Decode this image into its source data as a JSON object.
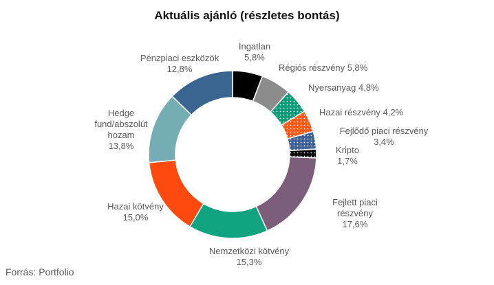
{
  "chart_data": {
    "type": "pie",
    "variant": "donut",
    "title": "Aktuális ajánló (részletes bontás)",
    "slices": [
      {
        "name": "Ingatlan",
        "label_lines": [
          "Ingatlan",
          "5,8%"
        ],
        "value": 5.8,
        "color": "#000000",
        "pattern": "solid"
      },
      {
        "name": "Régiós részvény",
        "label_lines": [
          "Régiós részvény 5,8%"
        ],
        "value": 5.8,
        "color": "#8c8c8c",
        "pattern": "solid"
      },
      {
        "name": "Nyersanyag",
        "label_lines": [
          "Nyersanyag 4,8%"
        ],
        "value": 4.8,
        "color": "#0a9c78",
        "pattern": "dots"
      },
      {
        "name": "Hazai részvény",
        "label_lines": [
          "Hazai részvény 4,2%"
        ],
        "value": 4.2,
        "color": "#ff5a14",
        "pattern": "dots"
      },
      {
        "name": "Fejlődő piaci részvény",
        "label_lines": [
          "Fejlődő piaci részvény",
          "3,4%"
        ],
        "value": 3.4,
        "color": "#3d6199",
        "pattern": "dots"
      },
      {
        "name": "Kripto",
        "label_lines": [
          "Kripto",
          "1,7%"
        ],
        "value": 1.7,
        "color": "#000000",
        "pattern": "dots"
      },
      {
        "name": "Fejlett piaci részvény",
        "label_lines": [
          "Fejlett piaci",
          "részvény",
          "17,6%"
        ],
        "value": 17.6,
        "color": "#7d5e7a",
        "pattern": "solid"
      },
      {
        "name": "Nemzetközi kötvény",
        "label_lines": [
          "Nemzetközi kötvény",
          "15,3%"
        ],
        "value": 15.3,
        "color": "#0fa37f",
        "pattern": "solid"
      },
      {
        "name": "Hazai kötvény",
        "label_lines": [
          "Hazai kötvény",
          "15,0%"
        ],
        "value": 15.0,
        "color": "#ff4a0f",
        "pattern": "solid"
      },
      {
        "name": "Hedge fund/abszolút hozam",
        "label_lines": [
          "Hedge",
          "fund/abszolút",
          "hozam",
          "13,8%"
        ],
        "value": 13.8,
        "color": "#74adb3",
        "pattern": "solid"
      },
      {
        "name": "Pénzpiaci eszközök",
        "label_lines": [
          "Pénzpiaci eszközök",
          "12,8%"
        ],
        "value": 12.8,
        "color": "#3a6591",
        "pattern": "solid"
      }
    ],
    "legend": "none"
  },
  "source_text": "Forrás: Portfolio"
}
